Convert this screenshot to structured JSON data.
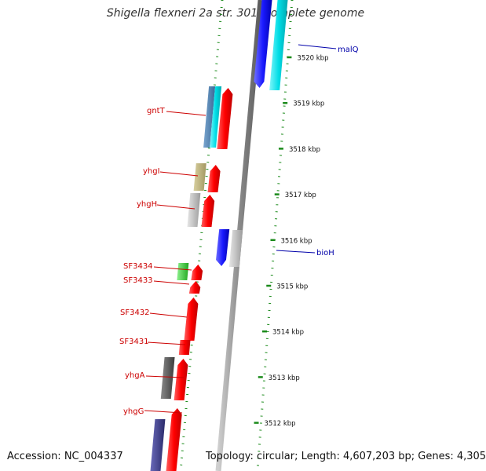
{
  "title": "Shigella flexneri 2a str. 301, complete genome",
  "accession": "Accession: NC_004337",
  "topology": "Topology: circular; Length: 4,607,203 bp; Genes: 4,305",
  "colors": {
    "red": "#ff0000",
    "cyan": "#00e0e8",
    "blue": "#1a1aff",
    "steel": "#4a7fb0",
    "olive": "#bdb27a",
    "gray": "#bcbcbc",
    "dark": "#5a5a5a",
    "green": "#3ecf3e",
    "navy": "#3a3a8a",
    "tick": "#1a8a1a",
    "label_left": "#cc0000",
    "label_right": "#0000aa"
  },
  "ruler": [
    {
      "label": "3520 kbp"
    },
    {
      "label": "3519 kbp"
    },
    {
      "label": "3518 kbp"
    },
    {
      "label": "3517 kbp"
    },
    {
      "label": "3516 kbp"
    },
    {
      "label": "3515 kbp"
    },
    {
      "label": "3514 kbp"
    },
    {
      "label": "3513 kbp"
    },
    {
      "label": "3512 kbp"
    }
  ],
  "gene_labels": [
    {
      "name": "malQ",
      "side": "right"
    },
    {
      "name": "gntT",
      "side": "left"
    },
    {
      "name": "yhgI",
      "side": "left"
    },
    {
      "name": "yhgH",
      "side": "left"
    },
    {
      "name": "bioH",
      "side": "right"
    },
    {
      "name": "SF3434",
      "side": "left"
    },
    {
      "name": "SF3433",
      "side": "left"
    },
    {
      "name": "SF3432",
      "side": "left"
    },
    {
      "name": "SF3431",
      "side": "left"
    },
    {
      "name": "yhgA",
      "side": "left"
    },
    {
      "name": "yhgG",
      "side": "left"
    }
  ]
}
